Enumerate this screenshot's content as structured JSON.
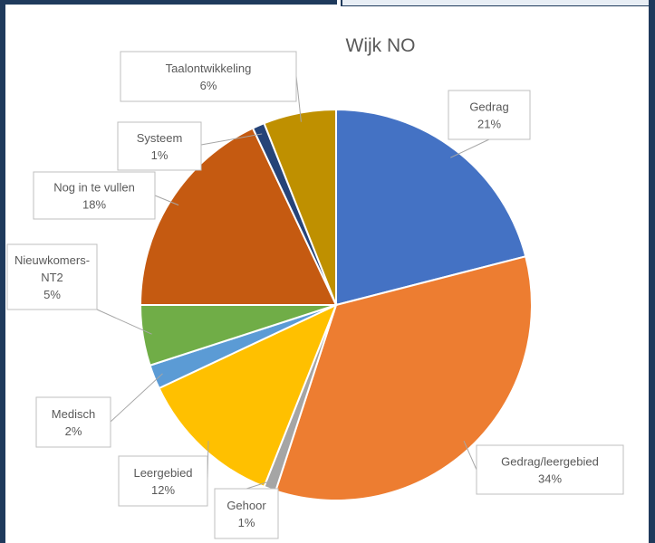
{
  "chart_data": {
    "type": "pie",
    "title": "Wijk NO",
    "categories": [
      "Gedrag",
      "Gedrag/leergebied",
      "Gehoor",
      "Leergebied",
      "Medisch",
      "Nieuwkomers-NT2",
      "Nog in te vullen",
      "Systeem",
      "Taalontwikkeling"
    ],
    "values": [
      21,
      34,
      1,
      12,
      2,
      5,
      18,
      1,
      6
    ],
    "labels": [
      {
        "name": "Gedrag",
        "pct": "21%"
      },
      {
        "name": "Gedrag/leergebied",
        "pct": "34%"
      },
      {
        "name": "Gehoor",
        "pct": "1%"
      },
      {
        "name": "Leergebied",
        "pct": "12%"
      },
      {
        "name": "Medisch",
        "pct": "2%"
      },
      {
        "name": "Nieuwkomers-NT2",
        "pct": "5%"
      },
      {
        "name": "Nog in te vullen",
        "pct": "18%"
      },
      {
        "name": "Systeem",
        "pct": "1%"
      },
      {
        "name": "Taalontwikkeling",
        "pct": "6%"
      }
    ],
    "colors": [
      "#4472c4",
      "#ed7d31",
      "#a5a5a5",
      "#ffc000",
      "#5b9bd5",
      "#70ad47",
      "#c55a11",
      "#264478",
      "#bf9000"
    ]
  }
}
